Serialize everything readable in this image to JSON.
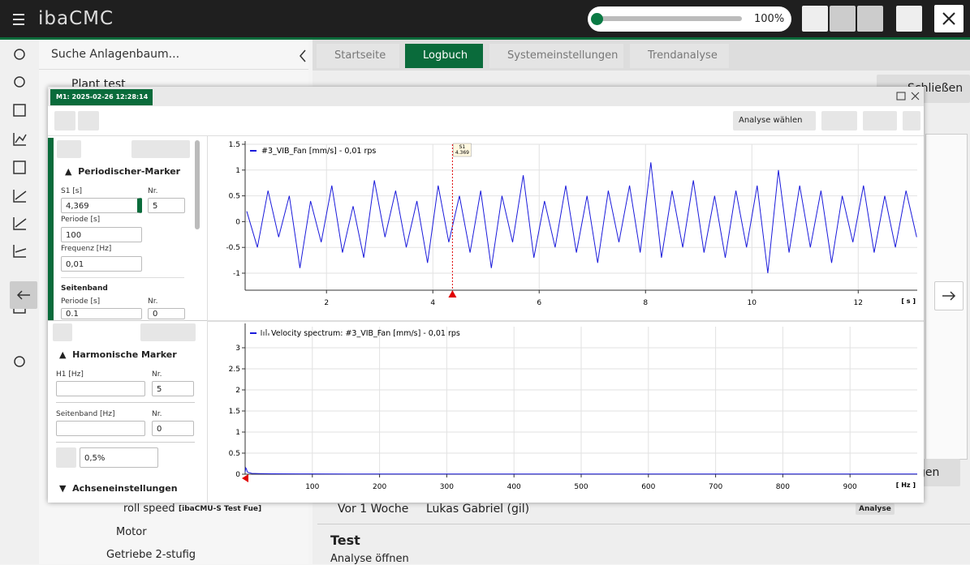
{
  "app": {
    "title": "ibaCMC",
    "zoom": "100%"
  },
  "tree": {
    "search": "Suche Anlagenbaum...",
    "root": "Plant test",
    "items": [
      "roll speed",
      "[ibaCMU-S Test Fue]",
      "Motor",
      "Getriebe 2-stufig"
    ]
  },
  "tabs": [
    "Startseite",
    "Logbuch",
    "Systemeinstellungen",
    "Trendanalyse"
  ],
  "background": {
    "close": "Schließen",
    "time": "Vor 1 Woche",
    "user": "Lukas Gabriel (gil)",
    "badge": "Analyse",
    "entry_title": "Test",
    "entry_action": "Analyse öffnen",
    "button_partial": "gen"
  },
  "dialog": {
    "tag": "M1: 2025-02-26 12:28:14",
    "analysis_select": "Analyse wählen",
    "periodic": {
      "title": "Periodischer-Marker",
      "s1_label": "S1 [s]",
      "s1": "4,369",
      "nr_label": "Nr.",
      "nr": "5",
      "period_label": "Periode [s]",
      "period": "100",
      "freq_label": "Frequenz [Hz]",
      "freq": "0,01",
      "sideband": "Seitenband",
      "sb_period_label": "Periode [s]",
      "sb_period": "0.1",
      "sb_nr_label": "Nr.",
      "sb_nr": "0"
    },
    "harmonic": {
      "title": "Harmonische Marker",
      "h1_label": "H1 [Hz]",
      "nr_label": "Nr.",
      "nr": "5",
      "sb_label": "Seitenband [Hz]",
      "sb_nr_label": "Nr.",
      "sb_nr": "0",
      "percent": "0,5%",
      "axis_settings": "Achseneinstellungen"
    }
  },
  "chart_data": [
    {
      "type": "line",
      "x_label": "[ s ]",
      "grid": true,
      "x": [
        0.5,
        0.7,
        0.9,
        1.1,
        1.3,
        1.5,
        1.7,
        1.9,
        2.1,
        2.3,
        2.5,
        2.7,
        2.9,
        3.1,
        3.3,
        3.5,
        3.7,
        3.9,
        4.1,
        4.3,
        4.5,
        4.7,
        4.9,
        5.1,
        5.3,
        5.5,
        5.7,
        5.9,
        6.1,
        6.3,
        6.5,
        6.7,
        6.9,
        7.1,
        7.3,
        7.5,
        7.7,
        7.9,
        8.1,
        8.3,
        8.5,
        8.7,
        8.9,
        9.1,
        9.3,
        9.5,
        9.7,
        9.9,
        10.1,
        10.3,
        10.5,
        10.7,
        10.9,
        11.1,
        11.3,
        11.5,
        11.7,
        11.9,
        12.1,
        12.3,
        12.5,
        12.7,
        12.9,
        13.1
      ],
      "series": [
        {
          "name": "#3_VIB_Fan [mm/s] - 0,01 rps",
          "color": "#1a1adb",
          "values": [
            0.2,
            -0.5,
            0.6,
            -0.3,
            0.5,
            -0.9,
            0.4,
            -0.4,
            0.7,
            -0.6,
            0.3,
            -0.7,
            0.8,
            -0.3,
            0.6,
            -0.5,
            0.4,
            -0.8,
            0.7,
            -0.4,
            0.5,
            -0.6,
            0.6,
            -0.9,
            0.5,
            -0.4,
            0.9,
            -0.7,
            0.4,
            -0.5,
            0.7,
            -0.6,
            0.5,
            -0.8,
            0.6,
            -0.4,
            0.7,
            -0.6,
            1.15,
            -0.7,
            0.6,
            -0.5,
            0.8,
            -0.6,
            0.5,
            -0.7,
            0.6,
            -0.5,
            0.7,
            -1.0,
            1.0,
            -0.6,
            0.7,
            -0.5,
            0.6,
            -0.8,
            0.5,
            -0.4,
            0.7,
            -0.6,
            0.5,
            -0.5,
            0.6,
            -0.3
          ]
        }
      ],
      "xlim": [
        0.47,
        13.11
      ],
      "xticks": [
        2,
        4,
        6,
        8,
        10,
        12
      ],
      "ylim": [
        -1.33,
        1.5
      ],
      "yticks": [
        -1,
        -0.5,
        0,
        0.5,
        1,
        1.5
      ],
      "marker": {
        "label": "S1",
        "x": 4.369,
        "color": "#e00000"
      }
    },
    {
      "type": "line",
      "x_label": "[ Hz ]",
      "grid": true,
      "x": [
        0,
        1,
        2,
        3,
        5,
        10,
        20,
        40,
        80,
        150,
        300,
        500,
        700,
        1000
      ],
      "series": [
        {
          "name": "Velocity spectrum: #3_VIB_Fan [mm/s] - 0,01 rps",
          "color": "#1a1adb",
          "values": [
            0.05,
            0.15,
            0.12,
            0.06,
            0.04,
            0.02,
            0.015,
            0.01,
            0.008,
            0.006,
            0.005,
            0.004,
            0.004,
            0.003
          ]
        }
      ],
      "xlim": [
        0,
        1000
      ],
      "xticks": [
        100,
        200,
        300,
        400,
        500,
        600,
        700,
        800,
        900
      ],
      "ylim": [
        0,
        3.5
      ],
      "yticks": [
        0,
        0.5,
        1,
        1.5,
        2,
        2.5,
        3
      ]
    }
  ]
}
